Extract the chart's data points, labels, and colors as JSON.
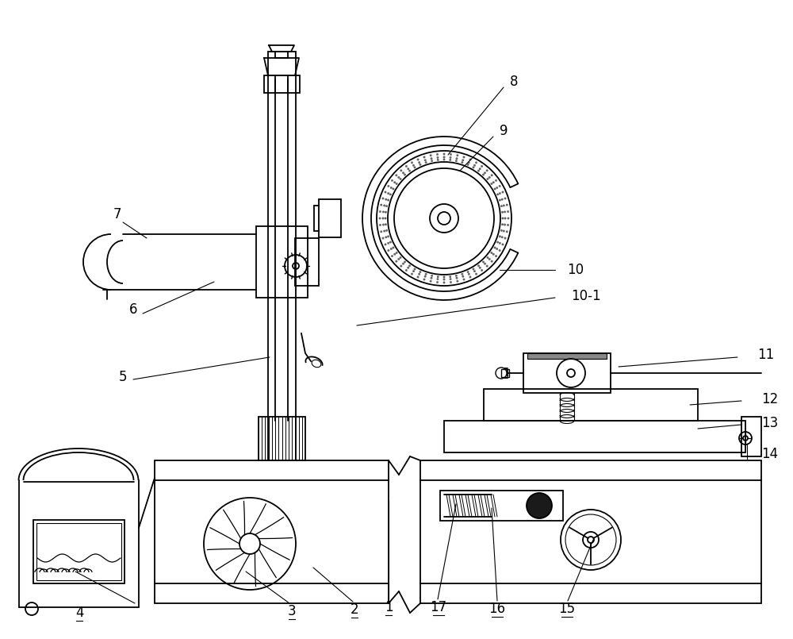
{
  "bg_color": "#ffffff",
  "line_color": "#000000",
  "lw": 1.3,
  "font_size": 12
}
